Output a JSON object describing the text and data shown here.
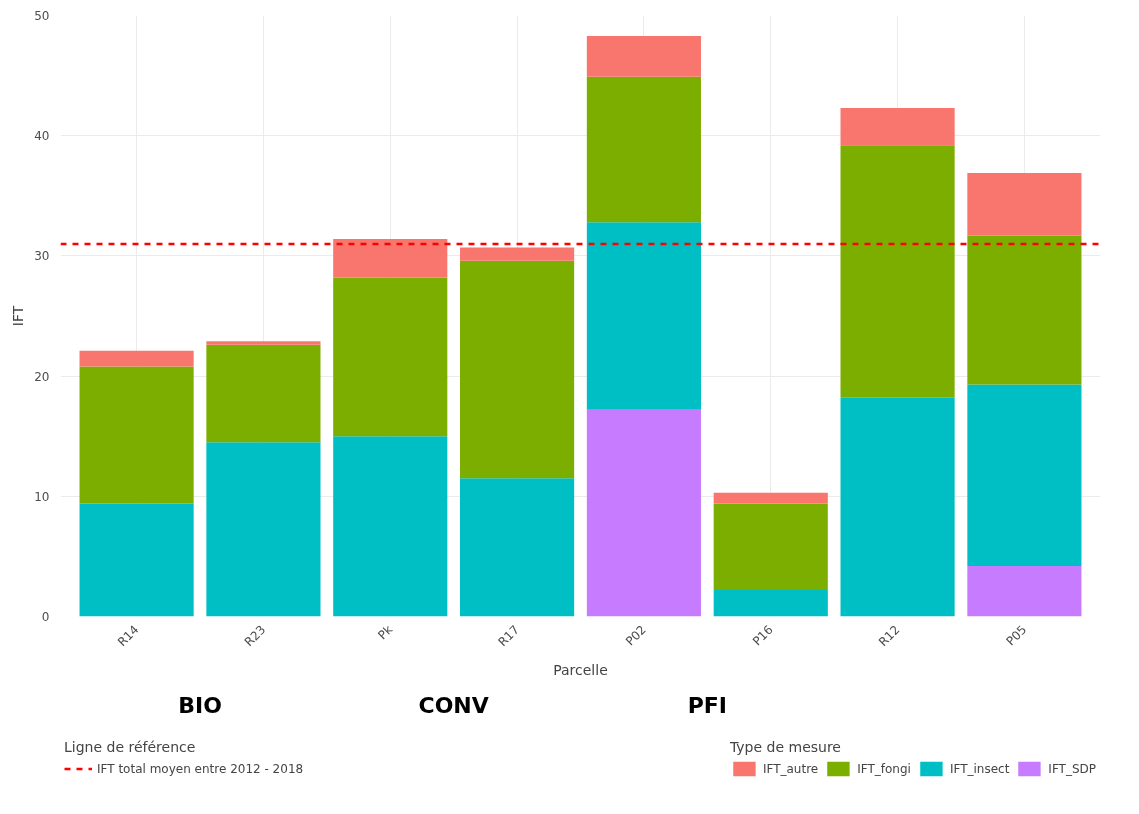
{
  "chart_data": {
    "type": "bar",
    "stacked": true,
    "xlabel": "Parcelle",
    "ylabel": "IFT",
    "legend_title": "Type de mesure",
    "categories": [
      "R14",
      "R23",
      "Pk",
      "R17",
      "P02",
      "P16",
      "R12",
      "P05"
    ],
    "series": [
      {
        "name": "IFT_SDP",
        "color": "#c77cff",
        "values": [
          null,
          null,
          null,
          null,
          17.2,
          null,
          null,
          4.2
        ]
      },
      {
        "name": "IFT_insect",
        "color": "#00bfc4",
        "values": [
          9.4,
          14.5,
          15.0,
          11.5,
          15.6,
          2.2,
          18.2,
          15.1
        ]
      },
      {
        "name": "IFT_fongi",
        "color": "#7cae00",
        "values": [
          11.4,
          8.1,
          13.2,
          18.1,
          12.1,
          7.2,
          21.0,
          12.4
        ]
      },
      {
        "name": "IFT_autre",
        "color": "#f8766d",
        "values": [
          1.3,
          0.3,
          3.2,
          1.1,
          3.4,
          0.9,
          3.1,
          5.2
        ]
      }
    ],
    "ylim": [
      0,
      50
    ],
    "yticks": [
      0,
      10,
      20,
      30,
      40,
      50
    ],
    "grid": true,
    "legend": "bottom",
    "ref_lines": [
      {
        "axis": "y",
        "value": 31,
        "label": "IFT total moyen entre 2012 - 2018",
        "color": "#ff0000",
        "line_style": "dashed"
      }
    ],
    "annotations": [
      "BIO",
      "CONV",
      "PFI",
      "Ligne de référence"
    ]
  }
}
